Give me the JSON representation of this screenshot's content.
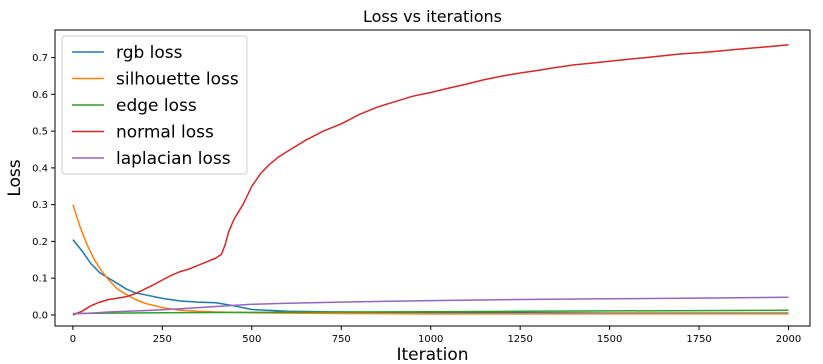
{
  "chart_data": {
    "type": "line",
    "title": "Loss vs iterations",
    "xlabel": "Iteration",
    "ylabel": "Loss",
    "xlim": [
      -50,
      2060
    ],
    "ylim": [
      -0.03,
      0.775
    ],
    "xticks": [
      0,
      250,
      500,
      750,
      1000,
      1250,
      1500,
      1750,
      2000
    ],
    "xtick_labels": [
      "0",
      "250",
      "500",
      "750",
      "1000",
      "1250",
      "1500",
      "1750",
      "2000"
    ],
    "yticks": [
      0.0,
      0.1,
      0.2,
      0.3,
      0.4,
      0.5,
      0.6,
      0.7
    ],
    "ytick_labels": [
      "0.0",
      "0.1",
      "0.2",
      "0.3",
      "0.4",
      "0.5",
      "0.6",
      "0.7"
    ],
    "grid": false,
    "legend_position": "top-left",
    "series": [
      {
        "name": "rgb loss",
        "color": "#1f77b4",
        "x": [
          0,
          25,
          50,
          75,
          100,
          125,
          150,
          175,
          200,
          250,
          300,
          350,
          400,
          450,
          500,
          600,
          750,
          1000,
          1250,
          1500,
          1750,
          2000
        ],
        "y": [
          0.205,
          0.175,
          0.14,
          0.115,
          0.1,
          0.085,
          0.07,
          0.06,
          0.055,
          0.045,
          0.038,
          0.035,
          0.033,
          0.025,
          0.015,
          0.01,
          0.008,
          0.006,
          0.006,
          0.005,
          0.005,
          0.005
        ]
      },
      {
        "name": "silhouette loss",
        "color": "#ff7f0e",
        "x": [
          0,
          20,
          40,
          60,
          80,
          100,
          125,
          150,
          175,
          200,
          250,
          300,
          350,
          400,
          500,
          750,
          1000,
          1500,
          2000
        ],
        "y": [
          0.3,
          0.24,
          0.19,
          0.15,
          0.12,
          0.095,
          0.07,
          0.055,
          0.042,
          0.032,
          0.02,
          0.013,
          0.01,
          0.008,
          0.006,
          0.004,
          0.003,
          0.003,
          0.003
        ]
      },
      {
        "name": "edge loss",
        "color": "#2ca02c",
        "x": [
          0,
          100,
          250,
          500,
          750,
          1000,
          1250,
          1500,
          1750,
          2000
        ],
        "y": [
          0.004,
          0.005,
          0.006,
          0.007,
          0.008,
          0.009,
          0.01,
          0.011,
          0.012,
          0.013
        ]
      },
      {
        "name": "normal loss",
        "color": "#d62728",
        "x": [
          0,
          25,
          50,
          75,
          100,
          125,
          150,
          175,
          200,
          225,
          250,
          275,
          300,
          325,
          350,
          375,
          400,
          415,
          425,
          435,
          450,
          475,
          500,
          525,
          550,
          575,
          600,
          650,
          700,
          750,
          800,
          850,
          900,
          950,
          1000,
          1050,
          1100,
          1150,
          1200,
          1250,
          1300,
          1350,
          1400,
          1450,
          1500,
          1550,
          1600,
          1650,
          1700,
          1750,
          1800,
          1850,
          1900,
          1950,
          2000
        ],
        "y": [
          0.0,
          0.01,
          0.025,
          0.035,
          0.042,
          0.046,
          0.05,
          0.058,
          0.07,
          0.082,
          0.095,
          0.108,
          0.118,
          0.125,
          0.135,
          0.145,
          0.155,
          0.165,
          0.19,
          0.225,
          0.26,
          0.3,
          0.35,
          0.385,
          0.41,
          0.43,
          0.445,
          0.475,
          0.5,
          0.52,
          0.545,
          0.565,
          0.58,
          0.595,
          0.605,
          0.617,
          0.628,
          0.64,
          0.65,
          0.658,
          0.665,
          0.673,
          0.68,
          0.685,
          0.69,
          0.695,
          0.7,
          0.705,
          0.71,
          0.713,
          0.717,
          0.722,
          0.726,
          0.73,
          0.735
        ]
      },
      {
        "name": "laplacian loss",
        "color": "#9467bd",
        "x": [
          0,
          50,
          100,
          150,
          200,
          250,
          300,
          350,
          400,
          450,
          500,
          600,
          700,
          800,
          1000,
          1250,
          1500,
          1750,
          2000
        ],
        "y": [
          0.003,
          0.005,
          0.008,
          0.01,
          0.012,
          0.014,
          0.017,
          0.02,
          0.023,
          0.026,
          0.029,
          0.032,
          0.034,
          0.036,
          0.039,
          0.042,
          0.044,
          0.046,
          0.048
        ]
      }
    ]
  }
}
